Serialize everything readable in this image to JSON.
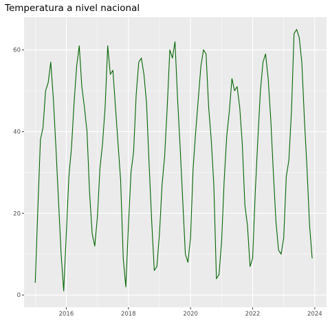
{
  "chart_data": {
    "type": "line",
    "title": "Temperatura a nivel nacional",
    "xlabel": "",
    "ylabel": "",
    "x_start": "2015-01",
    "x_frequency": "monthly",
    "x_ticks": [
      2016,
      2018,
      2020,
      2022,
      2024
    ],
    "y_ticks": [
      0,
      20,
      40,
      60
    ],
    "xlim": [
      2014.64,
      2024.38
    ],
    "ylim": [
      -3,
      68
    ],
    "grid": true,
    "legend": "none",
    "series": [
      {
        "color": "#006400",
        "values": [
          3,
          21,
          38,
          41,
          50,
          52,
          57,
          48,
          36,
          23,
          10,
          1,
          15,
          29,
          36,
          47,
          56,
          61,
          51,
          46,
          40,
          25,
          15,
          12,
          19,
          31,
          37,
          46,
          61,
          54,
          55,
          46,
          37,
          28,
          9,
          2,
          17,
          30,
          35,
          49,
          57,
          58,
          54,
          47,
          32,
          18,
          6,
          7,
          15,
          27,
          34,
          46,
          60,
          58,
          62,
          48,
          36,
          23,
          10,
          8,
          14,
          31,
          40,
          48,
          56,
          60,
          59,
          46,
          38,
          27,
          4,
          5,
          13,
          28,
          39,
          45,
          53,
          50,
          51,
          46,
          37,
          22,
          17,
          7,
          9,
          25,
          38,
          50,
          57,
          59,
          53,
          43,
          30,
          18,
          11,
          10,
          14,
          29,
          33,
          45,
          64,
          65,
          63,
          57,
          43,
          31,
          17,
          9
        ]
      }
    ]
  },
  "colors": {
    "panel_background": "#ebebeb",
    "grid_major": "#ffffff",
    "line": "#006400",
    "tick_label": "#4d4d4d",
    "tick_mark": "#333333"
  }
}
